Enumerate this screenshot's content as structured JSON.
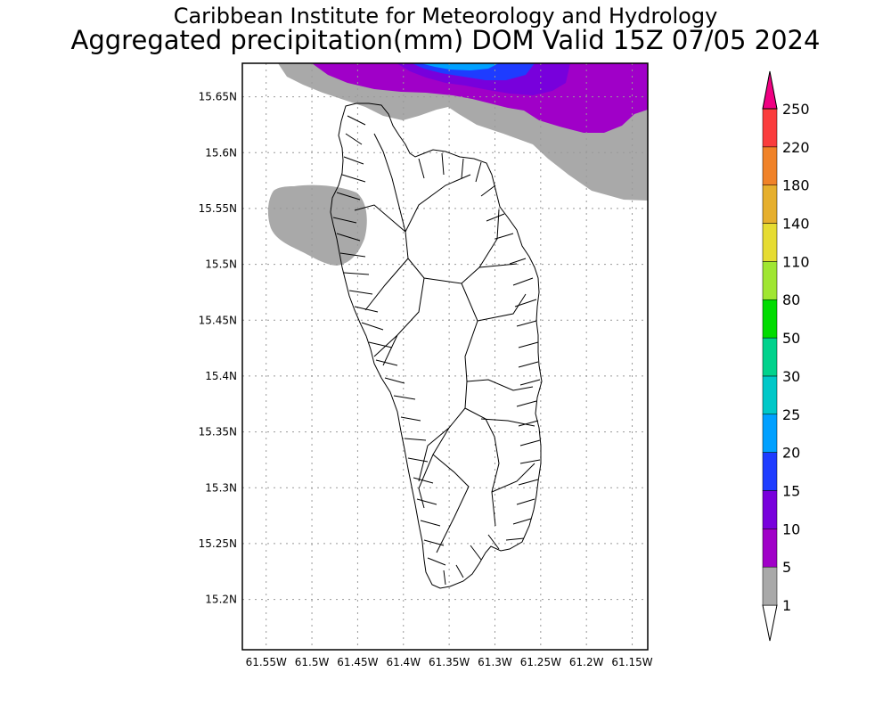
{
  "header": {
    "line1": "Caribbean Institute for Meteorology and Hydrology",
    "line2": "Aggregated precipitation(mm) DOM Valid 15Z 07/05 2024"
  },
  "map": {
    "lat_range": [
      15.155,
      15.68
    ],
    "lon_range": [
      -61.576,
      -61.133
    ],
    "lat_ticks": [
      "15.65N",
      "15.6N",
      "15.55N",
      "15.5N",
      "15.45N",
      "15.4N",
      "15.35N",
      "15.3N",
      "15.25N",
      "15.2N"
    ],
    "lat_values": [
      15.65,
      15.6,
      15.55,
      15.5,
      15.45,
      15.4,
      15.35,
      15.3,
      15.25,
      15.2
    ],
    "lon_ticks": [
      "61.55W",
      "61.5W",
      "61.45W",
      "61.4W",
      "61.35W",
      "61.3W",
      "61.25W",
      "61.2W",
      "61.15W"
    ],
    "lon_values": [
      -61.55,
      -61.5,
      -61.45,
      -61.4,
      -61.35,
      -61.3,
      -61.25,
      -61.2,
      -61.15
    ],
    "grid": true
  },
  "colorbar": {
    "labels": [
      "1",
      "5",
      "10",
      "15",
      "20",
      "25",
      "30",
      "50",
      "80",
      "110",
      "140",
      "180",
      "220",
      "250"
    ],
    "colors": [
      "#ffffff",
      "#a9a9a9",
      "#a000c8",
      "#7800dc",
      "#1e3cff",
      "#00a0ff",
      "#00c8c8",
      "#00d28c",
      "#00dc00",
      "#a0e632",
      "#e6dc32",
      "#e6af2d",
      "#f08228",
      "#fa3c3c",
      "#f00082"
    ]
  }
}
